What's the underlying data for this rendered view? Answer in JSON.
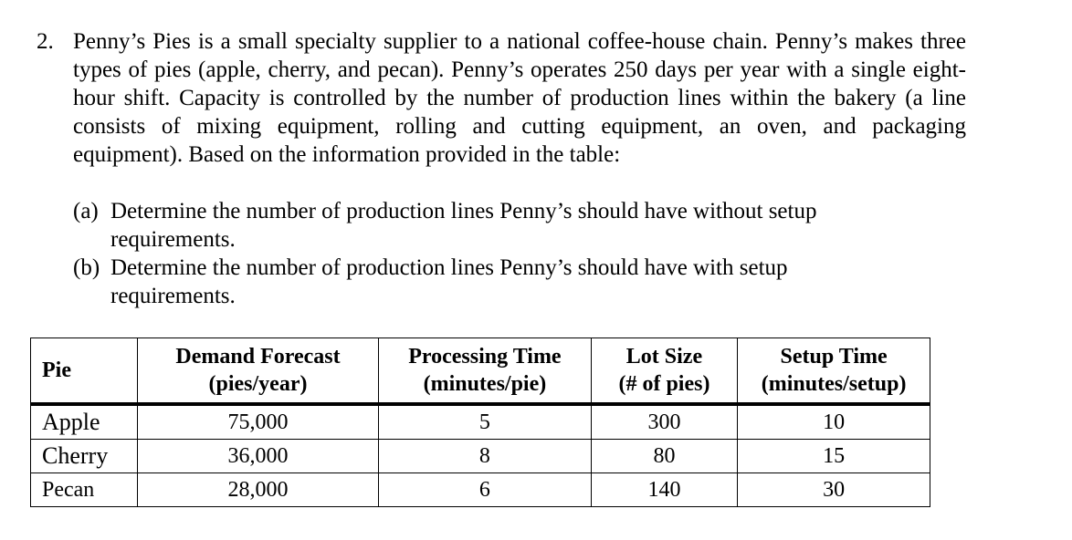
{
  "problem": {
    "number": "2.",
    "text": "Penny’s Pies is a small specialty supplier to a national coffee-house chain. Penny’s makes three types of pies (apple, cherry, and pecan). Penny’s operates 250 days per year with a single eight-hour shift. Capacity is controlled by the number of production lines within the bakery (a line consists of mixing equipment, rolling and cutting equipment, an oven, and packaging equipment). Based on the information provided in the table:",
    "parts": [
      {
        "label": "(a)",
        "text": "Determine the number of production lines Penny’s should have without setup requirements."
      },
      {
        "label": "(b)",
        "text": "Determine the number of production lines Penny’s should have with setup requirements."
      }
    ]
  },
  "table": {
    "headers": {
      "pie": "Pie",
      "demand_line1": "Demand Forecast",
      "demand_line2": "(pies/year)",
      "processing_line1": "Processing Time",
      "processing_line2": "(minutes/pie)",
      "lot_line1": "Lot Size",
      "lot_line2": "(# of pies)",
      "setup_line1": "Setup Time",
      "setup_line2": "(minutes/setup)"
    },
    "rows": [
      {
        "pie": "Apple",
        "demand": "75,000",
        "processing": "5",
        "lot": "300",
        "setup": "10"
      },
      {
        "pie": "Cherry",
        "demand": "36,000",
        "processing": "8",
        "lot": "80",
        "setup": "15"
      },
      {
        "pie": "Pecan",
        "demand": "28,000",
        "processing": "6",
        "lot": "140",
        "setup": "30"
      }
    ]
  }
}
